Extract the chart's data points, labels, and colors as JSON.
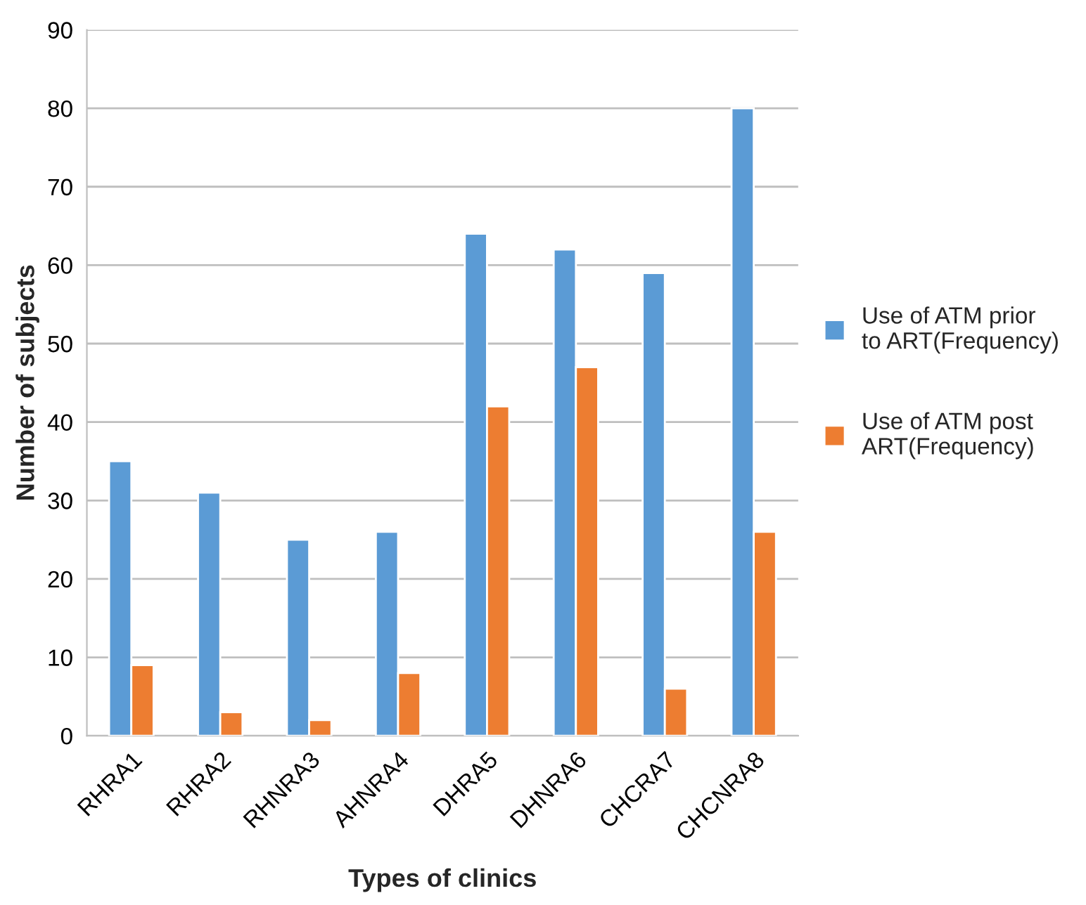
{
  "chart_data": {
    "type": "bar",
    "xlabel": "Types of clinics",
    "ylabel": "Number of subjects",
    "categories": [
      "RHRA1",
      "RHRA2",
      "RHNRA3",
      "AHNRA4",
      "DHRA5",
      "DHNRA6",
      "CHCRA7",
      "CHCNRA8"
    ],
    "series": [
      {
        "name": "Use of ATM prior\nto ART(Frequency)",
        "color": "#5b9bd5",
        "values": [
          35,
          31,
          25,
          26,
          64,
          62,
          59,
          80
        ]
      },
      {
        "name": "Use of ATM post\nART(Frequency)",
        "color": "#ed7d31",
        "values": [
          9,
          3,
          2,
          8,
          42,
          47,
          6,
          26
        ]
      }
    ],
    "ylim": [
      0,
      90
    ],
    "yticks": [
      0,
      10,
      20,
      30,
      40,
      50,
      60,
      70,
      80,
      90
    ],
    "grid": "y",
    "legend": "right"
  }
}
